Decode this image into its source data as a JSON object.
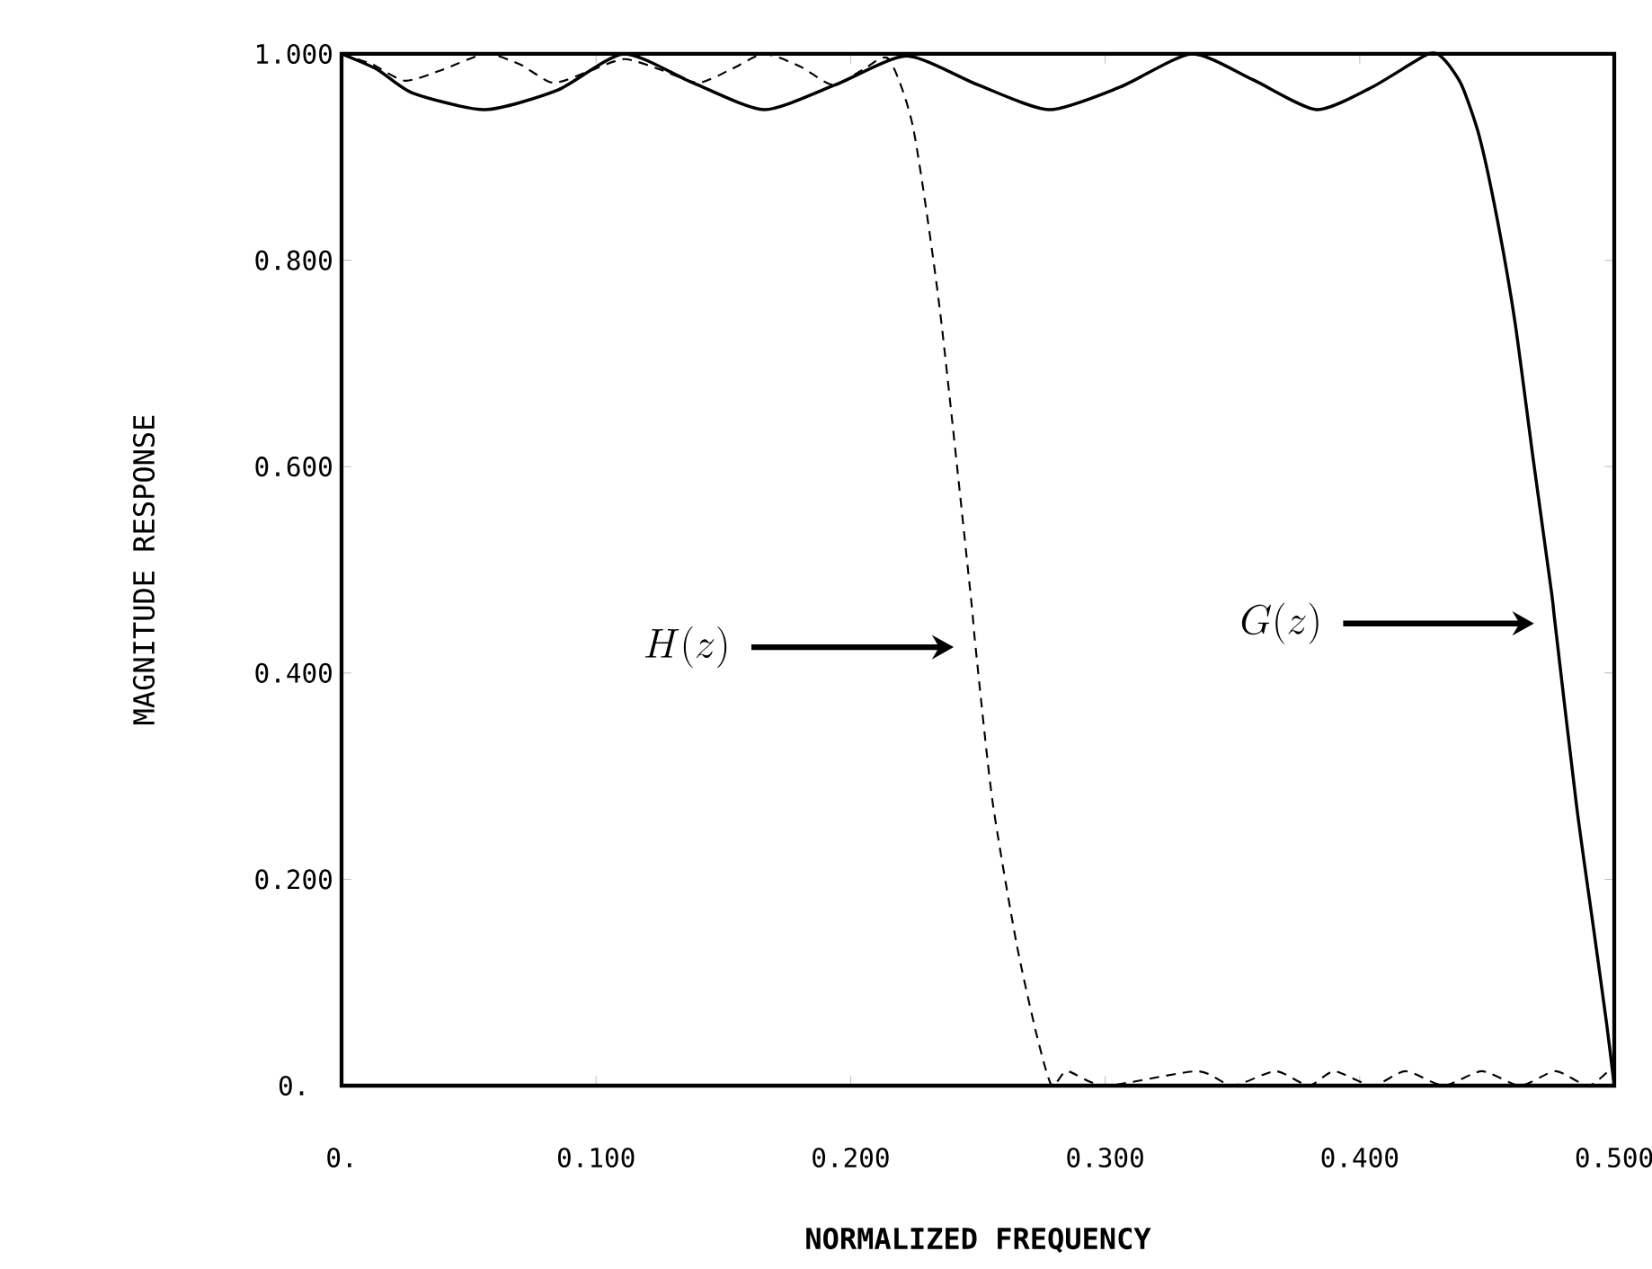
{
  "chart_data": {
    "type": "line",
    "xlabel": "NORMALIZED FREQUENCY",
    "ylabel": "MAGNITUDE RESPONSE",
    "xlim": [
      0,
      0.5
    ],
    "ylim": [
      0,
      1.0
    ],
    "xticks": [
      {
        "value": 0,
        "label": "0."
      },
      {
        "value": 0.1,
        "label": "0.100"
      },
      {
        "value": 0.2,
        "label": "0.200"
      },
      {
        "value": 0.3,
        "label": "0.300"
      },
      {
        "value": 0.4,
        "label": "0.400"
      },
      {
        "value": 0.5,
        "label": "0.500"
      }
    ],
    "yticks": [
      {
        "value": 0,
        "label": "0."
      },
      {
        "value": 0.2,
        "label": "0.200"
      },
      {
        "value": 0.4,
        "label": "0.400"
      },
      {
        "value": 0.6,
        "label": "0.600"
      },
      {
        "value": 0.8,
        "label": "0.800"
      },
      {
        "value": 1.0,
        "label": "1.000"
      }
    ],
    "series": [
      {
        "color": "#000000",
        "line_style": "solid",
        "x": [
          0,
          0.014,
          0.028,
          0.0565,
          0.085,
          0.111,
          0.138,
          0.166,
          0.194,
          0.222,
          0.25,
          0.278,
          0.306,
          0.334,
          0.358,
          0.383,
          0.405,
          0.427,
          0.433,
          0.44,
          0.447,
          0.454,
          0.461,
          0.468,
          0.4753,
          0.4767,
          0.4852,
          0.492,
          0.497,
          0.5
        ],
        "values": [
          1.0,
          0.985,
          0.962,
          0.946,
          0.965,
          1.0,
          0.972,
          0.946,
          0.97,
          0.998,
          0.97,
          0.946,
          0.968,
          1.0,
          0.975,
          0.946,
          0.968,
          1.0,
          0.995,
          0.97,
          0.92,
          0.84,
          0.74,
          0.61,
          0.479,
          0.449,
          0.271,
          0.15,
          0.06,
          0.0
        ]
      },
      {
        "color": "#000000",
        "line_style": "dashed",
        "x": [
          0,
          0.012,
          0.025,
          0.04,
          0.0565,
          0.07,
          0.083,
          0.097,
          0.111,
          0.125,
          0.14,
          0.153,
          0.166,
          0.18,
          0.193,
          0.205,
          0.215,
          0.2246,
          0.235,
          0.247,
          0.249,
          0.2556,
          0.265,
          0.273,
          0.279,
          0.285,
          0.3,
          0.336,
          0.35,
          0.367,
          0.38,
          0.39,
          0.405,
          0.418,
          0.433,
          0.448,
          0.463,
          0.477,
          0.49,
          0.5
        ],
        "values": [
          1.0,
          0.99,
          0.974,
          0.985,
          1.0,
          0.99,
          0.972,
          0.983,
          0.995,
          0.985,
          0.972,
          0.985,
          1.0,
          0.988,
          0.97,
          0.985,
          0.995,
          0.928,
          0.753,
          0.479,
          0.427,
          0.278,
          0.14,
          0.05,
          0.0,
          0.014,
          0.0,
          0.014,
          0.0,
          0.014,
          0.0,
          0.014,
          0.0,
          0.014,
          0.0,
          0.014,
          0.0,
          0.014,
          0.0,
          0.02
        ]
      }
    ],
    "annotations": [
      "H(z)",
      "G(z)"
    ]
  }
}
